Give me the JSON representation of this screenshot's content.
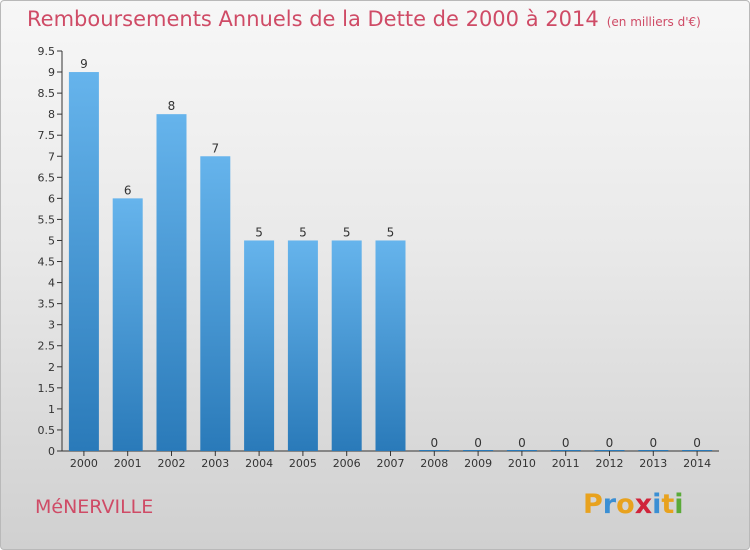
{
  "header": {
    "title": "Remboursements Annuels de la Dette de 2000 à 2014",
    "unit": "(en milliers d'€)"
  },
  "footer": {
    "commune": "MéNERVILLE",
    "logo_letters": [
      "P",
      "r",
      "o",
      "x",
      "i",
      "t",
      "i"
    ],
    "logo_colors": [
      "#e8a21e",
      "#3a8fd4",
      "#e8a21e",
      "#d0243a",
      "#3a8fd4",
      "#e8a21e",
      "#5aaa38"
    ]
  },
  "colors": {
    "title": "#cf4b66",
    "bar_light": "#66b4ec",
    "bar_dark": "#2a7ab9",
    "axis": "#333333"
  },
  "chart_data": {
    "type": "bar",
    "title": "Remboursements Annuels de la Dette de 2000 à 2014",
    "xlabel": "",
    "ylabel": "",
    "categories": [
      "2000",
      "2001",
      "2002",
      "2003",
      "2004",
      "2005",
      "2006",
      "2007",
      "2008",
      "2009",
      "2010",
      "2011",
      "2012",
      "2013",
      "2014"
    ],
    "values": [
      9,
      6,
      8,
      7,
      5,
      5,
      5,
      5,
      0,
      0,
      0,
      0,
      0,
      0,
      0
    ],
    "data_labels": [
      "9",
      "6",
      "8",
      "7",
      "5",
      "5",
      "5",
      "5",
      "0",
      "0",
      "0",
      "0",
      "0",
      "0",
      "0"
    ],
    "y_ticks": [
      "0",
      "0.5",
      "1",
      "1.5",
      "2",
      "2.5",
      "3",
      "3.5",
      "4",
      "4.5",
      "5",
      "5.5",
      "6",
      "6.5",
      "7",
      "7.5",
      "8",
      "8.5",
      "9",
      "9.5"
    ],
    "ylim": [
      0,
      9.5
    ],
    "grid": false,
    "legend": "none"
  }
}
